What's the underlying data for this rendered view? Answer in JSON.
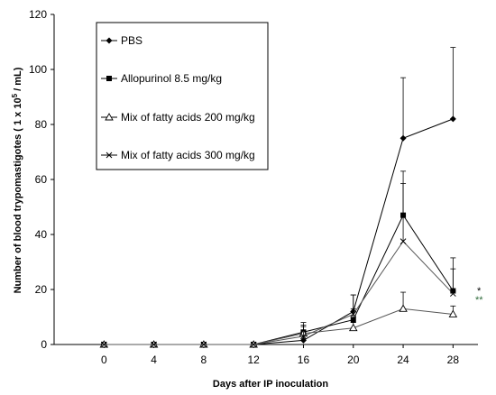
{
  "chart_data": {
    "type": "line",
    "xlabel": "Days after IP inoculation",
    "ylabel_main": "Number of blood trypomastigotes ( 1 x 10",
    "ylabel_sup": "5",
    "ylabel_end": " / mL)",
    "x": [
      0,
      4,
      8,
      12,
      16,
      20,
      24,
      28
    ],
    "xticks": [
      "0",
      "4",
      "8",
      "12",
      "16",
      "20",
      "24",
      "28"
    ],
    "xlim": [
      -4,
      30
    ],
    "ylim": [
      0,
      120
    ],
    "yticks": [
      "0",
      "20",
      "40",
      "60",
      "80",
      "100",
      "120"
    ],
    "grid": false,
    "legend_position": "top-left",
    "series": [
      {
        "name": "PBS",
        "marker": "diamond",
        "values": [
          0,
          0,
          0,
          0,
          1.5,
          12,
          75,
          82
        ],
        "err": [
          0,
          0,
          0,
          0,
          2,
          6,
          22,
          26
        ]
      },
      {
        "name": "Allopurinol 8.5 mg/kg",
        "marker": "square",
        "values": [
          0,
          0,
          0,
          0,
          4.5,
          9,
          47,
          19.5
        ],
        "err": [
          0,
          0,
          0,
          0,
          2,
          4,
          16,
          12
        ]
      },
      {
        "name": "Mix of fatty acids 200 mg/kg",
        "marker": "triangle",
        "values": [
          0,
          0,
          0,
          0,
          4,
          6,
          13,
          11
        ],
        "err": [
          0,
          0,
          0,
          0,
          3,
          2,
          6,
          3
        ]
      },
      {
        "name": "Mix of fatty acids 300 mg/kg",
        "marker": "x",
        "values": [
          0,
          0,
          0,
          0,
          3,
          11,
          37.5,
          18.5
        ],
        "err": [
          0,
          0,
          0,
          0,
          5,
          7,
          21,
          9
        ]
      }
    ],
    "annotations": [
      {
        "text": "*",
        "color": "#000000"
      },
      {
        "text": "**",
        "color": "#2e6b3a"
      }
    ]
  }
}
